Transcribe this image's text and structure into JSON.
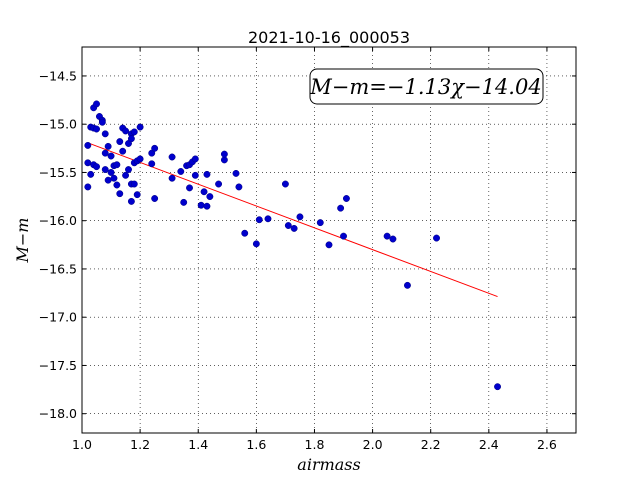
{
  "chart_data": {
    "type": "scatter",
    "title": "2021-10-16_000053",
    "xlabel": "airmass",
    "ylabel": "M−m",
    "xlim": [
      1.0,
      2.7
    ],
    "ylim": [
      -18.2,
      -14.2
    ],
    "y_inverted": true,
    "xticks": [
      "1.0",
      "1.2",
      "1.4",
      "1.6",
      "1.8",
      "2.0",
      "2.2",
      "2.4",
      "2.6"
    ],
    "yticks": [
      "−14.5",
      "−15.0",
      "−15.5",
      "−16.0",
      "−16.5",
      "−17.0",
      "−17.5",
      "−18.0"
    ],
    "grid": true,
    "annotation": "M−m=−1.13χ−14.04",
    "fit": {
      "slope": -1.13,
      "intercept": -14.04,
      "x_range": [
        1.02,
        2.43
      ],
      "color": "#ff0000"
    },
    "point_color": "#0000cc",
    "points": [
      [
        1.02,
        -15.22
      ],
      [
        1.02,
        -15.4
      ],
      [
        1.02,
        -15.65
      ],
      [
        1.03,
        -15.03
      ],
      [
        1.03,
        -15.52
      ],
      [
        1.04,
        -15.04
      ],
      [
        1.04,
        -14.83
      ],
      [
        1.04,
        -15.42
      ],
      [
        1.05,
        -14.79
      ],
      [
        1.05,
        -15.05
      ],
      [
        1.05,
        -15.44
      ],
      [
        1.06,
        -14.92
      ],
      [
        1.07,
        -14.96
      ],
      [
        1.07,
        -14.98
      ],
      [
        1.08,
        -15.1
      ],
      [
        1.08,
        -15.3
      ],
      [
        1.08,
        -15.47
      ],
      [
        1.09,
        -15.58
      ],
      [
        1.09,
        -15.23
      ],
      [
        1.1,
        -15.33
      ],
      [
        1.1,
        -15.5
      ],
      [
        1.11,
        -15.56
      ],
      [
        1.11,
        -15.43
      ],
      [
        1.12,
        -15.42
      ],
      [
        1.12,
        -15.63
      ],
      [
        1.13,
        -15.72
      ],
      [
        1.13,
        -15.18
      ],
      [
        1.14,
        -15.04
      ],
      [
        1.14,
        -15.28
      ],
      [
        1.15,
        -15.07
      ],
      [
        1.15,
        -15.53
      ],
      [
        1.16,
        -15.2
      ],
      [
        1.16,
        -15.47
      ],
      [
        1.17,
        -15.1
      ],
      [
        1.17,
        -15.15
      ],
      [
        1.17,
        -15.62
      ],
      [
        1.17,
        -15.8
      ],
      [
        1.18,
        -15.08
      ],
      [
        1.18,
        -15.4
      ],
      [
        1.18,
        -15.62
      ],
      [
        1.19,
        -15.73
      ],
      [
        1.19,
        -15.38
      ],
      [
        1.2,
        -15.03
      ],
      [
        1.2,
        -15.36
      ],
      [
        1.24,
        -15.41
      ],
      [
        1.24,
        -15.3
      ],
      [
        1.25,
        -15.25
      ],
      [
        1.25,
        -15.77
      ],
      [
        1.31,
        -15.34
      ],
      [
        1.31,
        -15.56
      ],
      [
        1.34,
        -15.49
      ],
      [
        1.35,
        -15.81
      ],
      [
        1.36,
        -15.43
      ],
      [
        1.37,
        -15.42
      ],
      [
        1.37,
        -15.66
      ],
      [
        1.38,
        -15.39
      ],
      [
        1.39,
        -15.36
      ],
      [
        1.39,
        -15.53
      ],
      [
        1.41,
        -15.84
      ],
      [
        1.42,
        -15.7
      ],
      [
        1.43,
        -15.85
      ],
      [
        1.43,
        -15.52
      ],
      [
        1.44,
        -15.75
      ],
      [
        1.47,
        -15.62
      ],
      [
        1.49,
        -15.37
      ],
      [
        1.49,
        -15.31
      ],
      [
        1.53,
        -15.51
      ],
      [
        1.54,
        -15.65
      ],
      [
        1.56,
        -16.13
      ],
      [
        1.6,
        -16.24
      ],
      [
        1.61,
        -15.99
      ],
      [
        1.64,
        -15.98
      ],
      [
        1.7,
        -15.62
      ],
      [
        1.71,
        -16.05
      ],
      [
        1.73,
        -16.08
      ],
      [
        1.75,
        -15.96
      ],
      [
        1.82,
        -16.02
      ],
      [
        1.85,
        -16.25
      ],
      [
        1.89,
        -15.87
      ],
      [
        1.9,
        -16.16
      ],
      [
        1.91,
        -15.77
      ],
      [
        2.05,
        -16.16
      ],
      [
        2.07,
        -16.19
      ],
      [
        2.12,
        -16.67
      ],
      [
        2.22,
        -16.18
      ],
      [
        2.43,
        -17.72
      ]
    ]
  }
}
